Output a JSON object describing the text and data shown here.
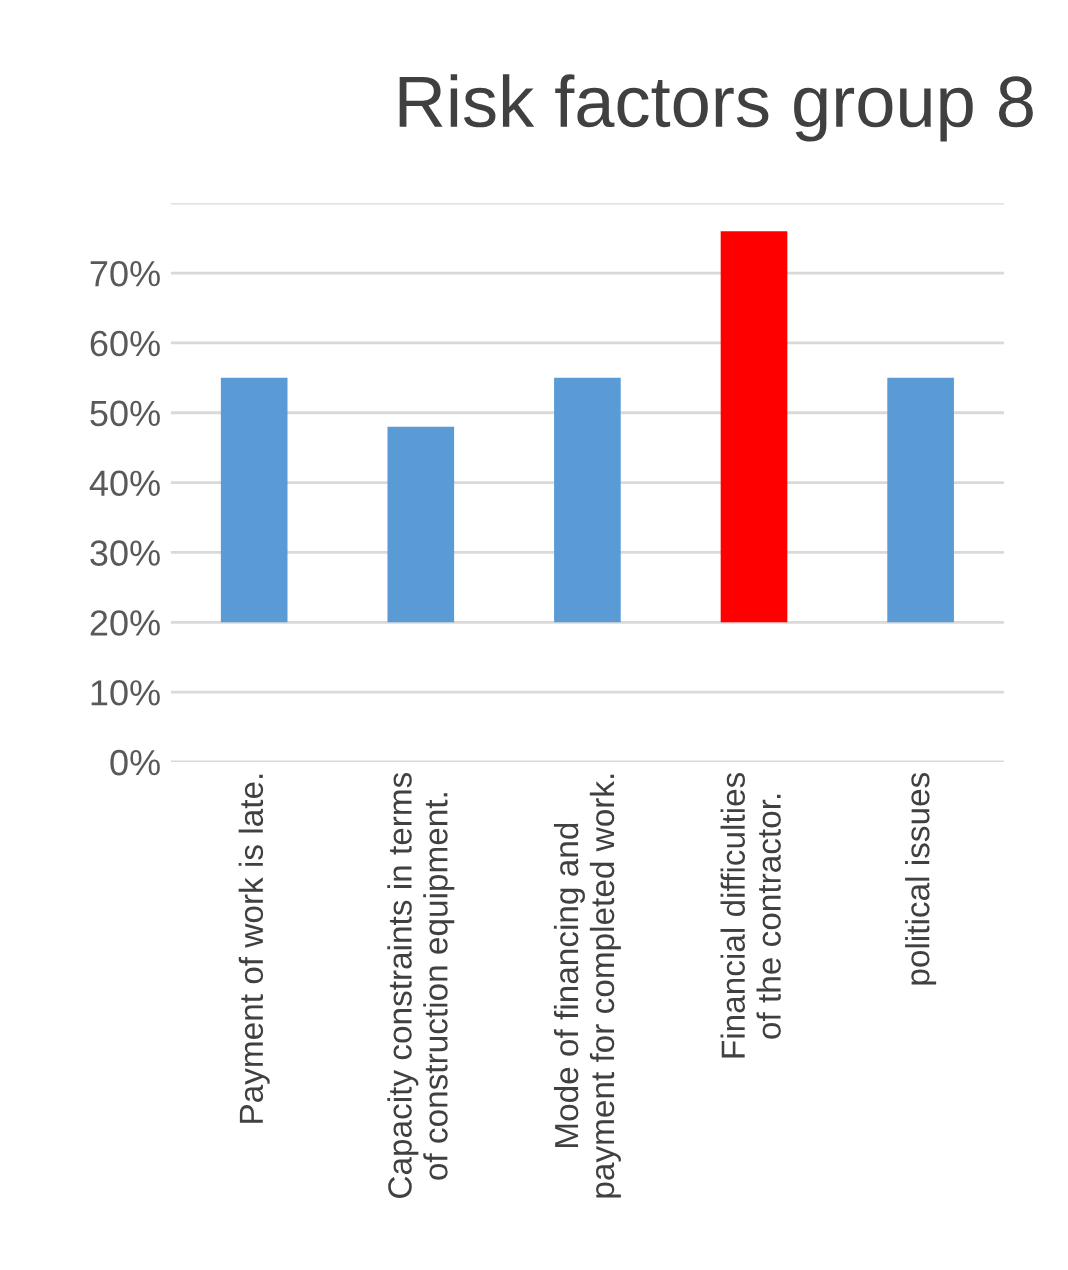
{
  "chart_data": {
    "type": "bar",
    "title": "Risk factors group 8",
    "categories": [
      "Payment of work is late.",
      "Capacity constraints in terms of construction equipment.",
      "Mode of financing and payment for completed work.",
      "Financial difficulties of the contractor.",
      "political issues"
    ],
    "values": [
      35,
      28,
      35,
      56,
      35
    ],
    "base": [
      20,
      20,
      20,
      20,
      20
    ],
    "colors": [
      "#5b9bd5",
      "#5b9bd5",
      "#5b9bd5",
      "#ff0000",
      "#5b9bd5"
    ],
    "ylim": [
      0,
      80
    ],
    "yticks": [
      {
        "value": 0,
        "label": "0%"
      },
      {
        "value": 10,
        "label": "10%"
      },
      {
        "value": 20,
        "label": "20%"
      },
      {
        "value": 30,
        "label": "30%"
      },
      {
        "value": 40,
        "label": "40%"
      },
      {
        "value": 50,
        "label": "50%"
      },
      {
        "value": 60,
        "label": "60%"
      },
      {
        "value": 70,
        "label": "70%"
      },
      {
        "value": 80,
        "label": null
      }
    ],
    "grid": "y"
  }
}
